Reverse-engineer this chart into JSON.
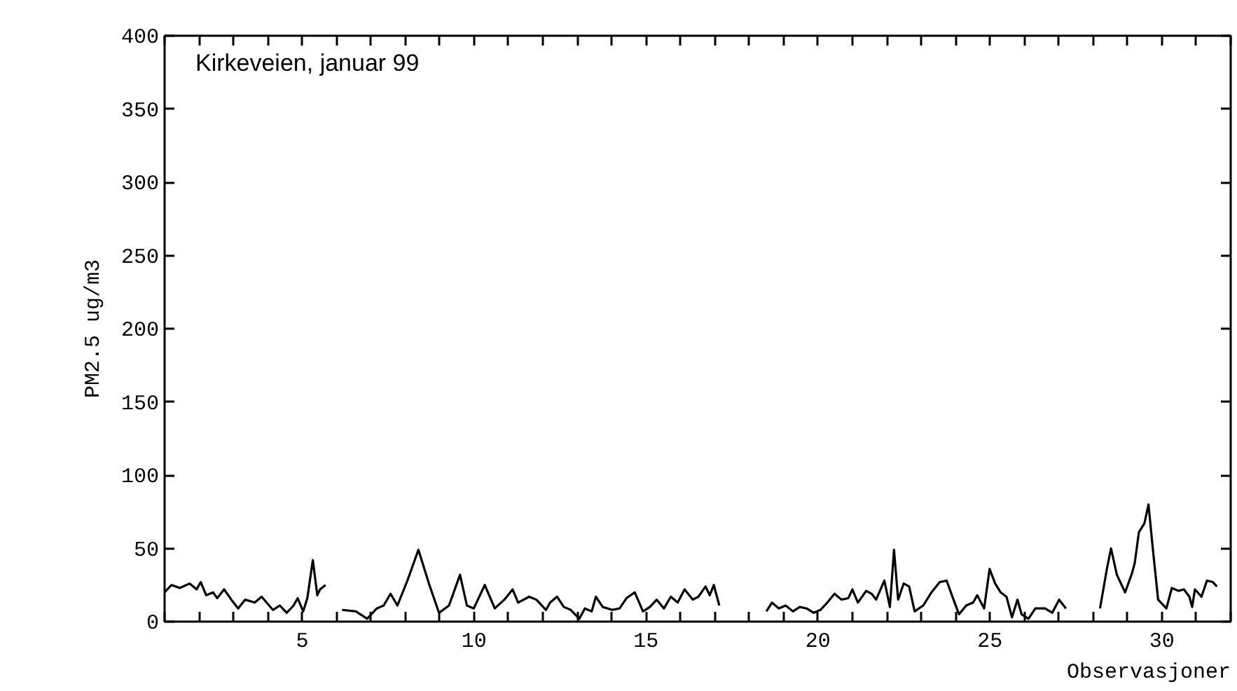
{
  "chart_data": {
    "type": "line",
    "title": "Kirkeveien, januar 99",
    "xlabel": "Observasjoner",
    "ylabel": "PM2.5 ug/m3",
    "xlim": [
      1,
      32
    ],
    "ylim": [
      0,
      400
    ],
    "xticks": [
      {
        "value": 1,
        "label": null
      },
      {
        "value": 2,
        "label": null
      },
      {
        "value": 3,
        "label": null
      },
      {
        "value": 4,
        "label": null
      },
      5,
      {
        "value": 6,
        "label": null
      },
      {
        "value": 7,
        "label": null
      },
      {
        "value": 8,
        "label": null
      },
      {
        "value": 9,
        "label": null
      },
      10,
      {
        "value": 11,
        "label": null
      },
      {
        "value": 12,
        "label": null
      },
      {
        "value": 13,
        "label": null
      },
      {
        "value": 14,
        "label": null
      },
      15,
      {
        "value": 16,
        "label": null
      },
      {
        "value": 17,
        "label": null
      },
      {
        "value": 18,
        "label": null
      },
      {
        "value": 19,
        "label": null
      },
      20,
      {
        "value": 21,
        "label": null
      },
      {
        "value": 22,
        "label": null
      },
      {
        "value": 23,
        "label": null
      },
      {
        "value": 24,
        "label": null
      },
      25,
      {
        "value": 26,
        "label": null
      },
      {
        "value": 27,
        "label": null
      },
      {
        "value": 28,
        "label": null
      },
      {
        "value": 29,
        "label": null
      },
      30,
      {
        "value": 31,
        "label": null
      },
      {
        "value": 32,
        "label": null
      }
    ],
    "yticks": [
      0,
      50,
      100,
      150,
      200,
      250,
      300,
      350,
      400
    ],
    "grid": false,
    "marker": "none",
    "line_style": "solid",
    "series": [
      {
        "color": "#000000",
        "x": [
          1.0,
          1.2,
          1.44,
          1.73,
          1.93,
          2.05,
          2.21,
          2.41,
          2.53,
          2.73,
          2.94,
          3.14,
          3.34,
          3.62,
          3.82,
          4.15,
          4.35,
          4.55,
          4.75,
          4.87,
          5.03,
          5.15,
          5.31,
          5.44,
          5.52,
          5.68,
          5.9,
          6.16,
          6.56,
          6.89,
          7.17,
          7.37,
          7.57,
          7.77,
          8.06,
          8.38,
          8.7,
          8.98,
          9.27,
          9.59,
          9.79,
          9.99,
          10.31,
          10.6,
          10.88,
          11.12,
          11.28,
          11.6,
          11.81,
          12.09,
          12.21,
          12.41,
          12.61,
          12.81,
          13.06,
          13.22,
          13.42,
          13.54,
          13.74,
          14.02,
          14.23,
          14.43,
          14.67,
          14.91,
          15.11,
          15.31,
          15.52,
          15.72,
          15.92,
          16.12,
          16.36,
          16.52,
          16.73,
          16.85,
          16.97,
          17.13,
          17.5,
          18.5,
          18.66,
          18.86,
          19.06,
          19.27,
          19.47,
          19.67,
          19.87,
          20.07,
          20.27,
          20.48,
          20.68,
          20.88,
          21.0,
          21.16,
          21.4,
          21.56,
          21.69,
          21.93,
          22.09,
          22.21,
          22.33,
          22.49,
          22.65,
          22.81,
          23.06,
          23.3,
          23.54,
          23.74,
          23.94,
          24.1,
          24.31,
          24.51,
          24.63,
          24.83,
          24.99,
          25.15,
          25.31,
          25.48,
          25.64,
          25.8,
          25.92,
          26.12,
          26.32,
          26.6,
          26.81,
          27.01,
          27.21,
          27.8,
          28.2,
          28.4,
          28.52,
          28.69,
          28.93,
          29.13,
          29.21,
          29.33,
          29.49,
          29.61,
          29.73,
          29.89,
          30.13,
          30.29,
          30.48,
          30.64,
          30.8,
          30.88,
          30.96,
          31.15,
          31.31,
          31.48,
          31.6
        ],
        "values": [
          20,
          25,
          23,
          26,
          22,
          27,
          18,
          20,
          16,
          22,
          15,
          9,
          15,
          13,
          17,
          8,
          11,
          6,
          11,
          16,
          7,
          16,
          42,
          18,
          22,
          25,
          null,
          8,
          7,
          2,
          9,
          11,
          19,
          11,
          28,
          49,
          25,
          6,
          11,
          32,
          11,
          9,
          25,
          9,
          15,
          22,
          13,
          17,
          15,
          8,
          13,
          17,
          10,
          8,
          2,
          9,
          7,
          17,
          10,
          8,
          9,
          16,
          20,
          7,
          10,
          15,
          9,
          17,
          13,
          22,
          15,
          17,
          24,
          18,
          25,
          11,
          null,
          7,
          13,
          9,
          11,
          7,
          10,
          9,
          6,
          8,
          13,
          19,
          15,
          16,
          22,
          13,
          21,
          19,
          15,
          28,
          10,
          49,
          15,
          26,
          24,
          7,
          11,
          20,
          27,
          28,
          15,
          5,
          11,
          13,
          18,
          9,
          36,
          26,
          20,
          17,
          3,
          15,
          5,
          2,
          9,
          9,
          6,
          15,
          9,
          null,
          9,
          36,
          50,
          32,
          20,
          33,
          40,
          61,
          67,
          80,
          51,
          15,
          9,
          23,
          21,
          22,
          17,
          10,
          22,
          17,
          28,
          27,
          24
        ]
      }
    ]
  }
}
